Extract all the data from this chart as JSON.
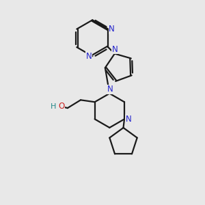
{
  "background_color": "#e8e8e8",
  "bond_color": "#1a1a1a",
  "nitrogen_color": "#2222cc",
  "oxygen_color": "#cc2222",
  "hydrogen_color": "#228888",
  "line_width": 1.6,
  "figsize": [
    3.0,
    3.0
  ],
  "dpi": 100,
  "xlim": [
    0,
    10
  ],
  "ylim": [
    0,
    10
  ]
}
